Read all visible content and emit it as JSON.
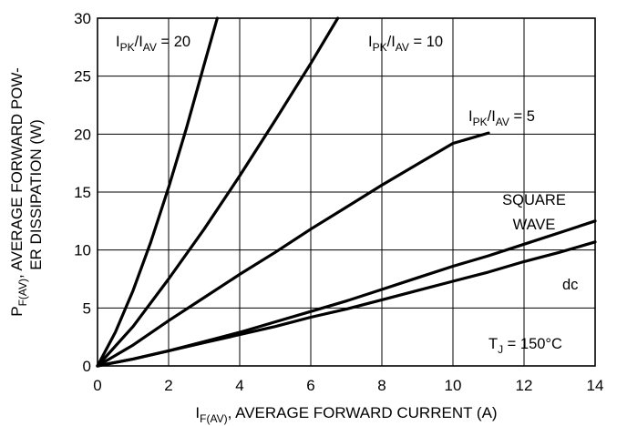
{
  "chart_data": {
    "type": "line",
    "title": "",
    "xlabel": {
      "main": "I",
      "sub": "F(AV)",
      "rest": ", AVERAGE FORWARD CURRENT (A)"
    },
    "ylabel": {
      "line1_main": "P",
      "line1_sub": "F(AV)",
      "line1_rest": ", AVERAGE FORWARD POW-",
      "line2": "ER DISSIPATION (W)"
    },
    "xlim": [
      0,
      14
    ],
    "ylim": [
      0,
      30
    ],
    "x_ticks": [
      "0",
      "2",
      "4",
      "6",
      "8",
      "10",
      "12",
      "14"
    ],
    "y_ticks": [
      "0",
      "5",
      "10",
      "15",
      "20",
      "25",
      "30"
    ],
    "grid": true,
    "series": [
      {
        "name": "IPK/IAV = 20",
        "points": [
          [
            0,
            0
          ],
          [
            0.5,
            2.9
          ],
          [
            1.0,
            6.5
          ],
          [
            1.5,
            10.7
          ],
          [
            2.0,
            15.4
          ],
          [
            2.5,
            20.5
          ],
          [
            3.0,
            26.0
          ],
          [
            3.37,
            30.0
          ]
        ]
      },
      {
        "name": "IPK/IAV = 10",
        "points": [
          [
            0,
            0
          ],
          [
            1,
            3.4
          ],
          [
            2,
            7.5
          ],
          [
            3,
            11.8
          ],
          [
            4,
            16.4
          ],
          [
            5,
            21.2
          ],
          [
            6,
            26.1
          ],
          [
            6.76,
            30.0
          ]
        ]
      },
      {
        "name": "IPK/IAV = 5",
        "points": [
          [
            0,
            0
          ],
          [
            1,
            1.8
          ],
          [
            2,
            3.9
          ],
          [
            3,
            5.9
          ],
          [
            4,
            7.9
          ],
          [
            5,
            9.8
          ],
          [
            6,
            11.8
          ],
          [
            7,
            13.7
          ],
          [
            8,
            15.6
          ],
          [
            9,
            17.4
          ],
          [
            10,
            19.2
          ],
          [
            11,
            20.1
          ]
        ]
      },
      {
        "name": "SQUARE WAVE",
        "points": [
          [
            0,
            0
          ],
          [
            1,
            0.6
          ],
          [
            2,
            1.3
          ],
          [
            3,
            2.1
          ],
          [
            4,
            2.9
          ],
          [
            5,
            3.8
          ],
          [
            6,
            4.7
          ],
          [
            7,
            5.6
          ],
          [
            8,
            6.6
          ],
          [
            9,
            7.6
          ],
          [
            10,
            8.6
          ],
          [
            11,
            9.5
          ],
          [
            12,
            10.5
          ],
          [
            13,
            11.5
          ],
          [
            14,
            12.5
          ]
        ]
      },
      {
        "name": "dc",
        "points": [
          [
            0,
            0
          ],
          [
            1,
            0.6
          ],
          [
            2,
            1.3
          ],
          [
            3,
            2.0
          ],
          [
            4,
            2.7
          ],
          [
            5,
            3.4
          ],
          [
            6,
            4.2
          ],
          [
            7,
            4.9
          ],
          [
            8,
            5.7
          ],
          [
            9,
            6.5
          ],
          [
            10,
            7.3
          ],
          [
            11,
            8.1
          ],
          [
            12,
            9.0
          ],
          [
            13,
            9.8
          ],
          [
            14,
            10.7
          ]
        ]
      }
    ],
    "labels": {
      "r20": {
        "m1": "I",
        "s1": "PK",
        "m2": "/I",
        "s2": "AV",
        "tail": " = 20"
      },
      "r10": {
        "m1": "I",
        "s1": "PK",
        "m2": "/I",
        "s2": "AV",
        "tail": " = 10"
      },
      "r5": {
        "m1": "I",
        "s1": "PK",
        "m2": "/I",
        "s2": "AV",
        "tail": " = 5"
      },
      "square_line1": "SQUARE",
      "square_line2": "WAVE",
      "dc": "dc",
      "tj": {
        "main": "T",
        "sub": "J",
        "rest": " = 150°C"
      }
    }
  }
}
